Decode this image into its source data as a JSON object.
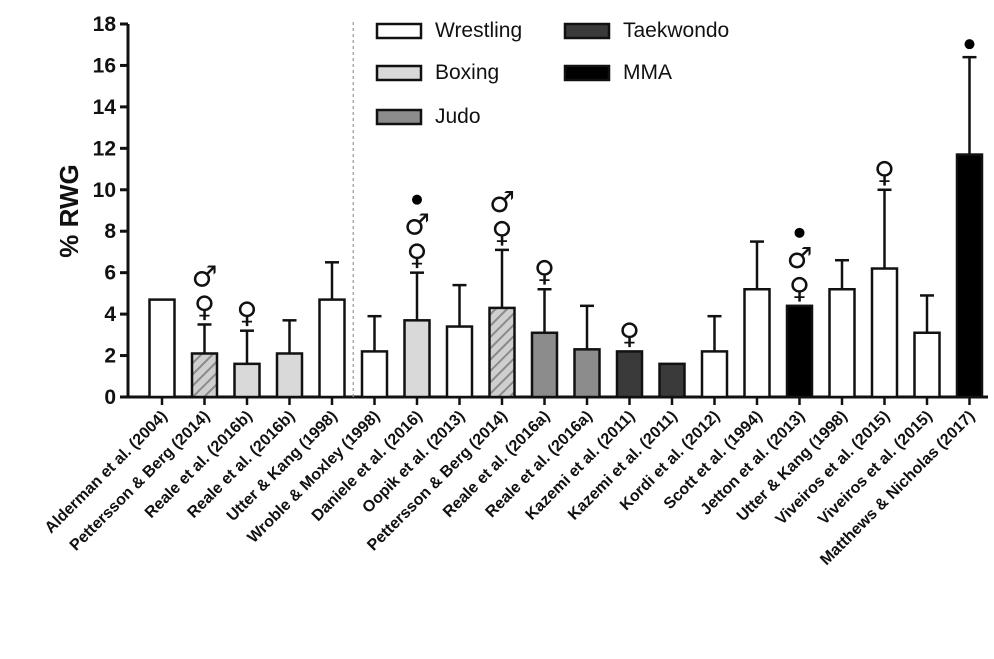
{
  "chart_data": {
    "type": "bar",
    "title": "",
    "xlabel": "",
    "ylabel": "% RWG",
    "ylim": [
      0,
      18
    ],
    "yticks": [
      0,
      2,
      4,
      6,
      8,
      10,
      12,
      14,
      16,
      18
    ],
    "grid": false,
    "legend_position": "top-center",
    "categories": [
      "Alderman et al. (2004)",
      "Pettersson & Berg (2014)",
      "Reale et al. (2016b)",
      "Reale et al. (2016b)",
      "Utter & Kang (1998)",
      "Wroble & Moxley (1998)",
      "Daniele et al. (2016)",
      "Oopik et al. (2013)",
      "Pettersson & Berg (2014)",
      "Reale et al. (2016a)",
      "Reale et al. (2016a)",
      "Kazemi et al. (2011)",
      "Kazemi et al. (2011)",
      "Kordi et al. (2012)",
      "Scott et al. (1994)",
      "Jetton et al. (2013)",
      "Utter & Kang (1998)",
      "Viveiros et al. (2015)",
      "Viveiros et al. (2015)",
      "Matthews & Nicholas (2017)"
    ],
    "values": [
      4.7,
      2.1,
      1.6,
      2.1,
      4.7,
      2.2,
      3.7,
      3.4,
      4.3,
      3.1,
      2.3,
      2.2,
      1.6,
      2.2,
      5.2,
      4.4,
      5.2,
      6.2,
      3.1,
      11.7
    ],
    "error_upper": [
      null,
      3.5,
      3.2,
      3.7,
      6.5,
      3.9,
      6.0,
      5.4,
      7.1,
      5.2,
      4.4,
      null,
      null,
      3.9,
      7.5,
      null,
      6.6,
      10.0,
      4.9,
      16.4
    ],
    "sport": [
      "Wrestling",
      "Boxing",
      "Boxing",
      "Boxing",
      "Wrestling",
      "Wrestling",
      "Boxing",
      "Wrestling",
      "Boxing",
      "Judo",
      "Judo",
      "Taekwondo",
      "Taekwondo",
      "Wrestling",
      "Wrestling",
      "MMA",
      "Wrestling",
      "Wrestling",
      "Wrestling",
      "MMA"
    ],
    "hatched": [
      false,
      true,
      false,
      false,
      false,
      false,
      false,
      false,
      true,
      false,
      false,
      false,
      false,
      false,
      false,
      false,
      false,
      false,
      false,
      false
    ],
    "markers": [
      [],
      [
        "male",
        "female"
      ],
      [
        "female"
      ],
      [],
      [],
      [],
      [
        "dot",
        "male",
        "female"
      ],
      [],
      [
        "male",
        "female"
      ],
      [
        "female"
      ],
      [],
      [
        "female"
      ],
      [],
      [],
      [],
      [
        "dot",
        "male",
        "female"
      ],
      [],
      [
        "female"
      ],
      [],
      [
        "dot"
      ]
    ],
    "legend": [
      {
        "name": "Wrestling",
        "color": "#ffffff"
      },
      {
        "name": "Boxing",
        "color": "#d9d9d9"
      },
      {
        "name": "Judo",
        "color": "#8c8c8c"
      },
      {
        "name": "Taekwondo",
        "color": "#3a3a3a"
      },
      {
        "name": "MMA",
        "color": "#000000"
      }
    ],
    "colors": {
      "Wrestling": "#ffffff",
      "Boxing": "#d9d9d9",
      "Judo": "#8c8c8c",
      "Taekwondo": "#3a3a3a",
      "MMA": "#000000",
      "hatched_Boxing": "#b3b3b3",
      "hatched_Wrestling": "#ffffff"
    },
    "divider_after_index": 4,
    "symbols": {
      "male": "♂",
      "female": "♀",
      "dot": "●"
    }
  }
}
